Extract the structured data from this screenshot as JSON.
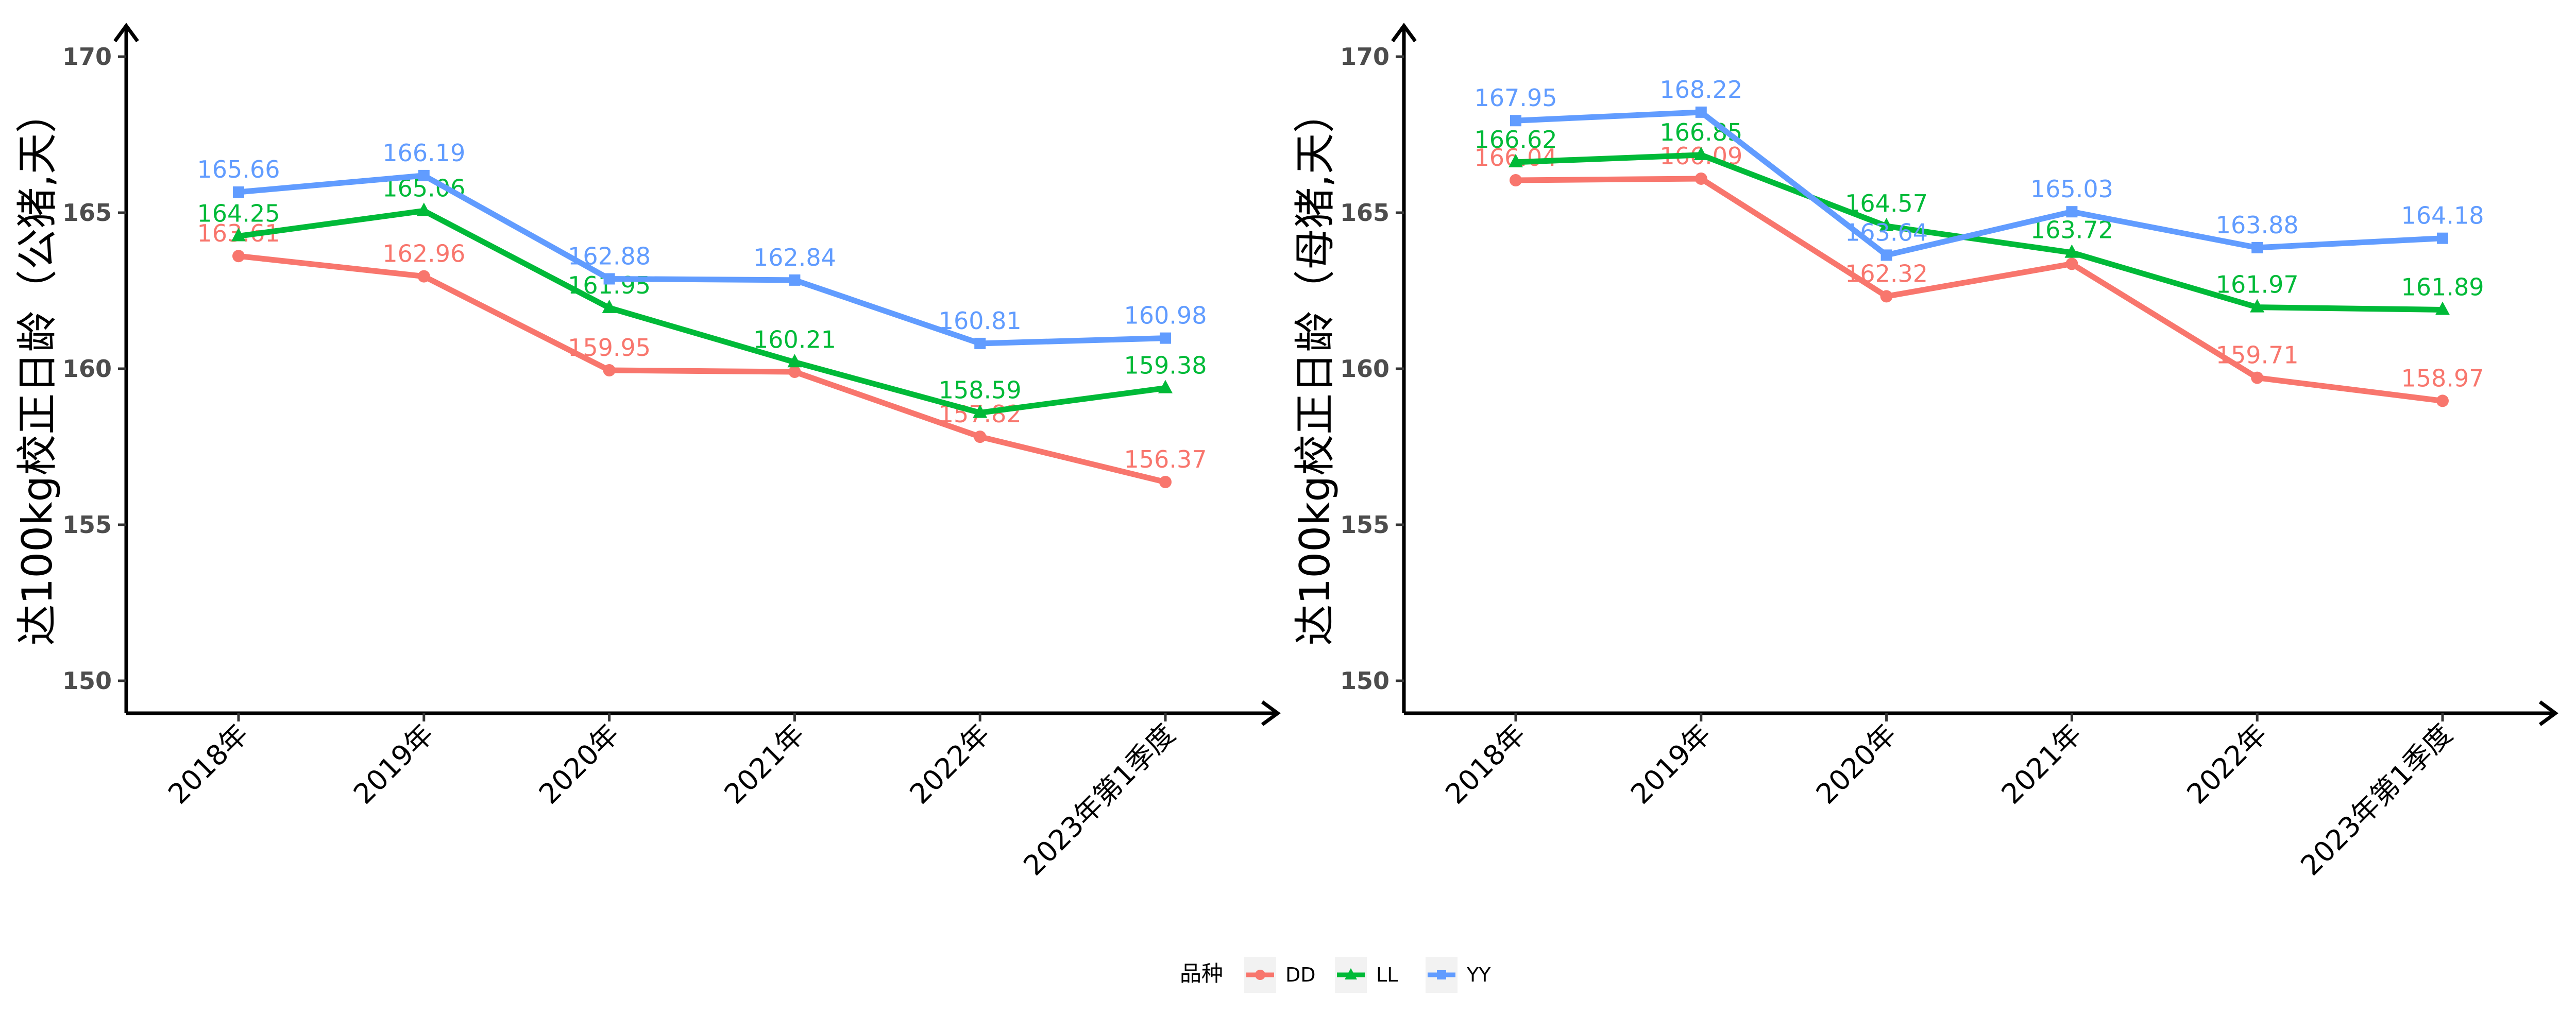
{
  "chart_data": [
    {
      "type": "line",
      "ylabel": "达100kg校正日龄（公猪,天）",
      "ylim": [
        150,
        170
      ],
      "yticks": [
        150,
        155,
        160,
        165,
        170
      ],
      "categories": [
        "2018年",
        "2019年",
        "2020年",
        "2021年",
        "2022年",
        "2023年第1季度"
      ],
      "series": [
        {
          "name": "DD",
          "color": "#f8766d",
          "marker": "circle",
          "values": [
            163.61,
            162.96,
            159.95,
            159.9,
            157.82,
            156.37
          ],
          "labels": [
            "163.61",
            "162.96",
            "159.95",
            "",
            "157.82",
            "156.37"
          ]
        },
        {
          "name": "LL",
          "color": "#00ba38",
          "marker": "triangle",
          "values": [
            164.25,
            165.06,
            161.95,
            160.21,
            158.59,
            159.38
          ],
          "labels": [
            "164.25",
            "165.06",
            "161.95",
            "160.21",
            "158.59",
            "159.38"
          ]
        },
        {
          "name": "YY",
          "color": "#619cff",
          "marker": "square",
          "values": [
            165.66,
            166.19,
            162.88,
            162.84,
            160.81,
            160.98
          ],
          "labels": [
            "165.66",
            "166.19",
            "162.88",
            "162.84",
            "160.81",
            "160.98"
          ]
        }
      ]
    },
    {
      "type": "line",
      "ylabel": "达100kg校正日龄（母猪,天）",
      "ylim": [
        150,
        170
      ],
      "yticks": [
        150,
        155,
        160,
        165,
        170
      ],
      "categories": [
        "2018年",
        "2019年",
        "2020年",
        "2021年",
        "2022年",
        "2023年第1季度"
      ],
      "series": [
        {
          "name": "DD",
          "color": "#f8766d",
          "marker": "circle",
          "values": [
            166.04,
            166.09,
            162.32,
            163.36,
            159.71,
            158.97
          ],
          "labels": [
            "166.04",
            "166.09",
            "162.32",
            "",
            "159.71",
            "158.97"
          ]
        },
        {
          "name": "LL",
          "color": "#00ba38",
          "marker": "triangle",
          "values": [
            166.62,
            166.85,
            164.57,
            163.72,
            161.97,
            161.89
          ],
          "labels": [
            "166.62",
            "166.85",
            "164.57",
            "163.72",
            "161.97",
            "161.89"
          ]
        },
        {
          "name": "YY",
          "color": "#619cff",
          "marker": "square",
          "values": [
            167.95,
            168.22,
            163.64,
            165.03,
            163.88,
            164.18
          ],
          "labels": [
            "167.95",
            "168.22",
            "163.64",
            "165.03",
            "163.88",
            "164.18"
          ]
        }
      ]
    }
  ],
  "legend": {
    "title": "品种",
    "position": "bottom",
    "items": [
      {
        "name": "DD",
        "color": "#f8766d",
        "marker": "circle"
      },
      {
        "name": "LL",
        "color": "#00ba38",
        "marker": "triangle"
      },
      {
        "name": "YY",
        "color": "#619cff",
        "marker": "square"
      }
    ]
  }
}
